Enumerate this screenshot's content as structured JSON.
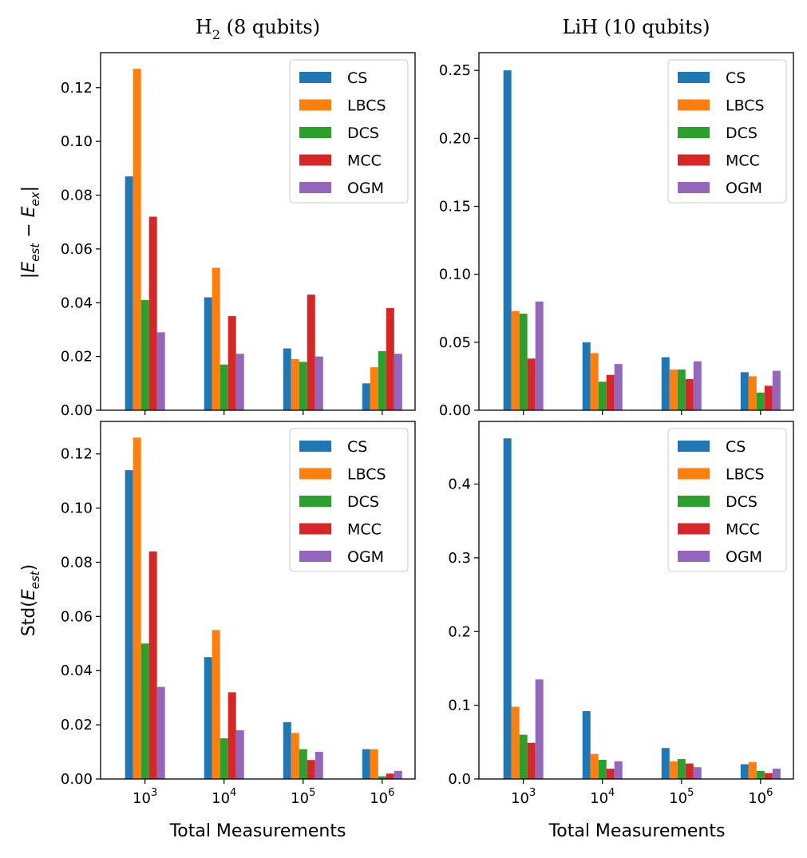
{
  "chart_data": [
    {
      "type": "bar",
      "title": "H2 (8 qubits)",
      "xlabel": "",
      "ylabel": "|E_est − E_ex|",
      "categories": [
        "10^3",
        "10^4",
        "10^5",
        "10^6"
      ],
      "ylim": [
        0,
        0.133
      ],
      "yticks": [
        "0.00",
        "0.02",
        "0.04",
        "0.06",
        "0.08",
        "0.10",
        "0.12"
      ],
      "show_xtick_labels": false,
      "series": [
        {
          "name": "CS",
          "values": [
            0.087,
            0.042,
            0.023,
            0.01
          ]
        },
        {
          "name": "LBCS",
          "values": [
            0.127,
            0.053,
            0.019,
            0.016
          ]
        },
        {
          "name": "DCS",
          "values": [
            0.041,
            0.017,
            0.018,
            0.022
          ]
        },
        {
          "name": "MCC",
          "values": [
            0.072,
            0.035,
            0.043,
            0.038
          ]
        },
        {
          "name": "OGM",
          "values": [
            0.029,
            0.021,
            0.02,
            0.021
          ]
        }
      ],
      "legend_position": "top-right"
    },
    {
      "type": "bar",
      "title": "LiH (10 qubits)",
      "xlabel": "",
      "ylabel": "",
      "categories": [
        "10^3",
        "10^4",
        "10^5",
        "10^6"
      ],
      "ylim": [
        0,
        0.263
      ],
      "yticks": [
        "0.00",
        "0.05",
        "0.10",
        "0.15",
        "0.20",
        "0.25"
      ],
      "show_xtick_labels": false,
      "series": [
        {
          "name": "CS",
          "values": [
            0.25,
            0.05,
            0.039,
            0.028
          ]
        },
        {
          "name": "LBCS",
          "values": [
            0.073,
            0.042,
            0.03,
            0.025
          ]
        },
        {
          "name": "DCS",
          "values": [
            0.071,
            0.021,
            0.03,
            0.013
          ]
        },
        {
          "name": "MCC",
          "values": [
            0.038,
            0.026,
            0.023,
            0.018
          ]
        },
        {
          "name": "OGM",
          "values": [
            0.08,
            0.034,
            0.036,
            0.029
          ]
        }
      ],
      "legend_position": "top-right"
    },
    {
      "type": "bar",
      "title": "",
      "xlabel": "Total Measurements",
      "ylabel": "Std(E_est)",
      "categories": [
        "10^3",
        "10^4",
        "10^5",
        "10^6"
      ],
      "ylim": [
        0,
        0.132
      ],
      "yticks": [
        "0.00",
        "0.02",
        "0.04",
        "0.06",
        "0.08",
        "0.10",
        "0.12"
      ],
      "show_xtick_labels": true,
      "series": [
        {
          "name": "CS",
          "values": [
            0.114,
            0.045,
            0.021,
            0.011
          ]
        },
        {
          "name": "LBCS",
          "values": [
            0.126,
            0.055,
            0.017,
            0.011
          ]
        },
        {
          "name": "DCS",
          "values": [
            0.05,
            0.015,
            0.011,
            0.001
          ]
        },
        {
          "name": "MCC",
          "values": [
            0.084,
            0.032,
            0.007,
            0.002
          ]
        },
        {
          "name": "OGM",
          "values": [
            0.034,
            0.018,
            0.01,
            0.003
          ]
        }
      ],
      "legend_position": "top-right"
    },
    {
      "type": "bar",
      "title": "",
      "xlabel": "Total Measurements",
      "ylabel": "",
      "categories": [
        "10^3",
        "10^4",
        "10^5",
        "10^6"
      ],
      "ylim": [
        0,
        0.485
      ],
      "yticks": [
        "0.0",
        "0.1",
        "0.2",
        "0.3",
        "0.4"
      ],
      "show_xtick_labels": true,
      "series": [
        {
          "name": "CS",
          "values": [
            0.462,
            0.092,
            0.042,
            0.02
          ]
        },
        {
          "name": "LBCS",
          "values": [
            0.098,
            0.034,
            0.024,
            0.023
          ]
        },
        {
          "name": "DCS",
          "values": [
            0.06,
            0.026,
            0.027,
            0.011
          ]
        },
        {
          "name": "MCC",
          "values": [
            0.049,
            0.014,
            0.021,
            0.008
          ]
        },
        {
          "name": "OGM",
          "values": [
            0.135,
            0.024,
            0.016,
            0.014
          ]
        }
      ],
      "legend_position": "top-right"
    }
  ],
  "colors": {
    "CS": "#1f77b4",
    "LBCS": "#ff7f0e",
    "DCS": "#2ca02c",
    "MCC": "#d62728",
    "OGM": "#9467bd"
  },
  "titles": {
    "left_prefix": "H",
    "left_sub": "2",
    "left_suffix": " (8 qubits)",
    "right": "LiH (10 qubits)"
  },
  "labels": {
    "top_ylabel_prefix": "|",
    "top_ylabel_e": "E",
    "top_ylabel_est": "est",
    "top_ylabel_minus": " − ",
    "top_ylabel_ex": "ex",
    "top_ylabel_suffix": "|",
    "bottom_ylabel_prefix": "Std(",
    "bottom_ylabel_e": "E",
    "bottom_ylabel_est": "est",
    "bottom_ylabel_suffix": ")",
    "xlabel": "Total Measurements"
  },
  "x_tick_base": "10",
  "x_tick_exponents": [
    "3",
    "4",
    "5",
    "6"
  ]
}
